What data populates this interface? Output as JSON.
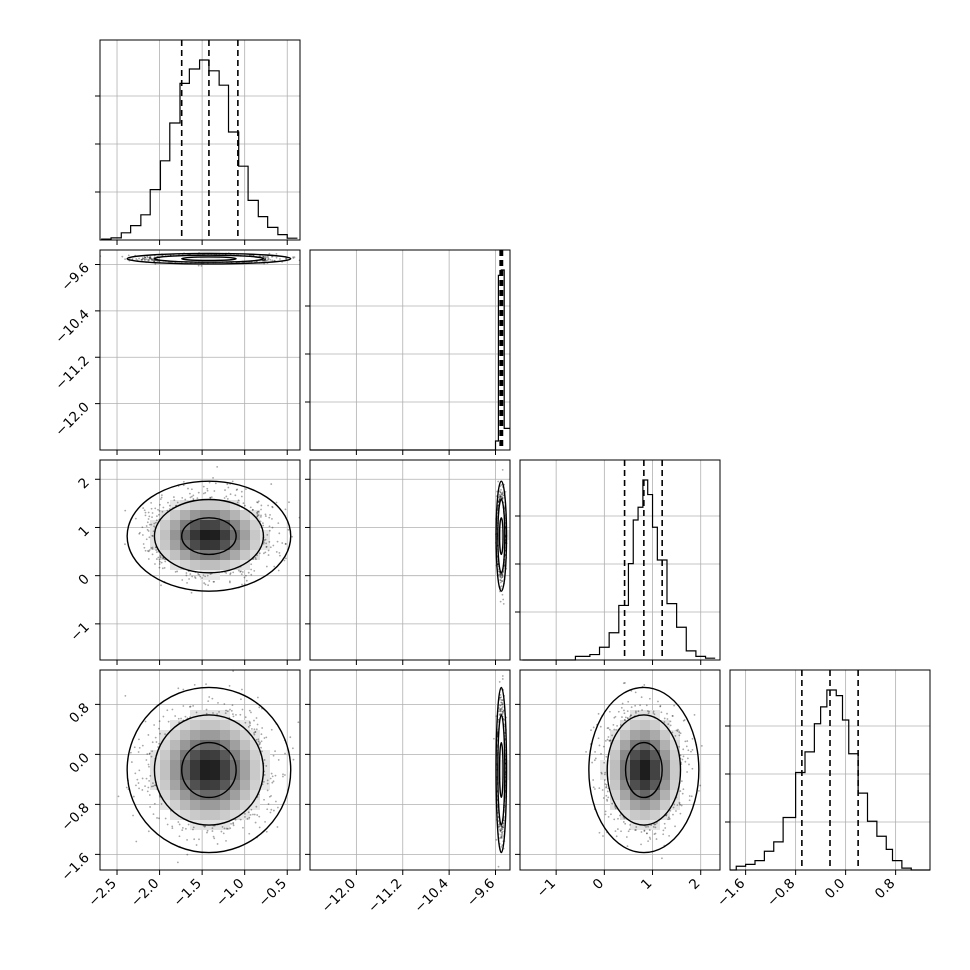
{
  "chart_data": {
    "type": "corner",
    "parameters": [
      {
        "range": [
          -2.7,
          -0.35
        ],
        "ticks": [
          -2.5,
          -2.0,
          -1.5,
          -1.0,
          -0.5
        ],
        "tick_labels": [
          "−2.5",
          "−2.0",
          "−1.5",
          "−1.0",
          "−0.5"
        ],
        "quantiles": [
          -1.74,
          -1.42,
          -1.08
        ],
        "mean": -1.42,
        "sd": 0.32
      },
      {
        "range": [
          -12.8,
          -9.35
        ],
        "ticks": [
          -12.0,
          -11.2,
          -10.4,
          -9.6
        ],
        "tick_labels": [
          "−12.0",
          "−11.2",
          "−10.4",
          "−9.6"
        ],
        "quantiles": [
          -9.52,
          -9.5,
          -9.48
        ],
        "mean": -9.5,
        "sd": 0.03
      },
      {
        "range": [
          -1.75,
          2.4
        ],
        "ticks": [
          -1,
          0,
          1,
          2
        ],
        "tick_labels": [
          "−1",
          "0",
          "1",
          "2"
        ],
        "quantiles": [
          0.42,
          0.82,
          1.2
        ],
        "mean": 0.82,
        "sd": 0.38
      },
      {
        "range": [
          -1.85,
          1.35
        ],
        "ticks": [
          -1.6,
          -0.8,
          0.0,
          0.8
        ],
        "tick_labels": [
          "−1.6",
          "−0.8",
          "0.0",
          "0.8"
        ],
        "quantiles": [
          -0.7,
          -0.25,
          0.2
        ],
        "mean": -0.25,
        "sd": 0.44
      }
    ],
    "histograms": [
      {
        "bins": [
          -2.68,
          -2.57,
          -2.45,
          -2.34,
          -2.22,
          -2.11,
          -1.99,
          -1.88,
          -1.76,
          -1.65,
          -1.53,
          -1.42,
          -1.3,
          -1.19,
          -1.07,
          -0.96,
          -0.84,
          -0.73,
          -0.61,
          -0.5,
          -0.38
        ],
        "counts": [
          0.005,
          0.012,
          0.04,
          0.08,
          0.14,
          0.28,
          0.44,
          0.65,
          0.87,
          0.95,
          1.0,
          0.94,
          0.86,
          0.6,
          0.41,
          0.22,
          0.13,
          0.07,
          0.03,
          0.01
        ]
      },
      {
        "bins": [
          -12.8,
          -9.6,
          -9.55,
          -9.5,
          -9.45,
          -9.4,
          -9.35
        ],
        "counts": [
          0.0,
          0.05,
          0.97,
          1.0,
          0.12,
          0.12
        ]
      },
      {
        "bins": [
          -1.7,
          -0.6,
          -0.3,
          -0.1,
          0.1,
          0.3,
          0.5,
          0.6,
          0.7,
          0.8,
          0.9,
          1.0,
          1.1,
          1.3,
          1.5,
          1.7,
          1.9,
          2.1,
          2.3
        ],
        "counts": [
          0.0,
          0.02,
          0.03,
          0.07,
          0.15,
          0.3,
          0.53,
          0.77,
          0.84,
          0.99,
          0.91,
          0.73,
          0.55,
          0.31,
          0.18,
          0.05,
          0.02,
          0.01
        ]
      },
      {
        "bins": [
          -1.85,
          -1.75,
          -1.6,
          -1.45,
          -1.3,
          -1.15,
          -1.0,
          -0.8,
          -0.65,
          -0.5,
          -0.4,
          -0.3,
          -0.15,
          -0.05,
          0.05,
          0.2,
          0.35,
          0.5,
          0.65,
          0.75,
          0.9,
          1.05,
          1.2,
          1.35
        ],
        "counts": [
          0.0,
          0.02,
          0.03,
          0.05,
          0.1,
          0.15,
          0.28,
          0.52,
          0.63,
          0.78,
          0.87,
          0.96,
          0.93,
          0.8,
          0.62,
          0.41,
          0.26,
          0.18,
          0.11,
          0.05,
          0.01,
          0.0,
          0.0
        ]
      }
    ],
    "levels": [
      0.393,
      0.865,
      0.989
    ],
    "n_samples_per_panel": 1800,
    "grid": true,
    "colors": {
      "ink": "#000000",
      "grid": "#b0b0b0",
      "background": "#ffffff"
    }
  }
}
